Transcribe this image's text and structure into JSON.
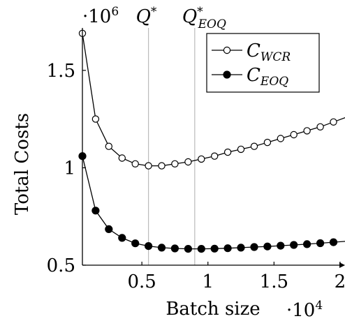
{
  "chart_data": {
    "type": "line",
    "title": "",
    "xlabel": "Batch size",
    "ylabel": "Total Costs",
    "x_multiplier_label": "·10",
    "x_multiplier_exp": "4",
    "y_multiplier_label": "·10",
    "y_multiplier_exp": "6",
    "xlim": [
      0.05,
      2.0
    ],
    "ylim": [
      0.5,
      1.7
    ],
    "x_ticks": [
      {
        "value": 0.5,
        "label": "0.5"
      },
      {
        "value": 1.0,
        "label": "1"
      },
      {
        "value": 1.5,
        "label": "1.5"
      },
      {
        "value": 2.0,
        "label": "2"
      }
    ],
    "y_ticks": [
      {
        "value": 0.5,
        "label": "0.5"
      },
      {
        "value": 1.0,
        "label": "1"
      },
      {
        "value": 1.5,
        "label": "1.5"
      }
    ],
    "grid": false,
    "legend_position": "top-right",
    "reference_lines": [
      {
        "x": 0.55,
        "label": "Q",
        "sup": "*",
        "sub": ""
      },
      {
        "x": 0.9,
        "label": "Q",
        "sup": "*",
        "sub": "EOQ"
      }
    ],
    "series": [
      {
        "name": "C",
        "name_sub": "WCR",
        "marker": "open-circle",
        "color": "#000000",
        "x": [
          0.05,
          0.15,
          0.25,
          0.35,
          0.45,
          0.55,
          0.65,
          0.75,
          0.85,
          0.95,
          1.05,
          1.15,
          1.25,
          1.35,
          1.45,
          1.55,
          1.65,
          1.75,
          1.85,
          1.95,
          2.05
        ],
        "y": [
          1.69,
          1.25,
          1.11,
          1.05,
          1.02,
          1.01,
          1.01,
          1.02,
          1.03,
          1.045,
          1.06,
          1.08,
          1.095,
          1.11,
          1.13,
          1.15,
          1.17,
          1.19,
          1.21,
          1.235,
          1.26
        ]
      },
      {
        "name": "C",
        "name_sub": "EOQ",
        "marker": "filled-circle",
        "color": "#000000",
        "x": [
          0.05,
          0.15,
          0.25,
          0.35,
          0.45,
          0.55,
          0.65,
          0.75,
          0.85,
          0.95,
          1.05,
          1.15,
          1.25,
          1.35,
          1.45,
          1.55,
          1.65,
          1.75,
          1.85,
          1.95,
          2.05
        ],
        "y": [
          1.06,
          0.78,
          0.685,
          0.64,
          0.612,
          0.598,
          0.59,
          0.586,
          0.584,
          0.584,
          0.585,
          0.587,
          0.59,
          0.593,
          0.596,
          0.6,
          0.604,
          0.608,
          0.613,
          0.618,
          0.623
        ]
      }
    ]
  }
}
